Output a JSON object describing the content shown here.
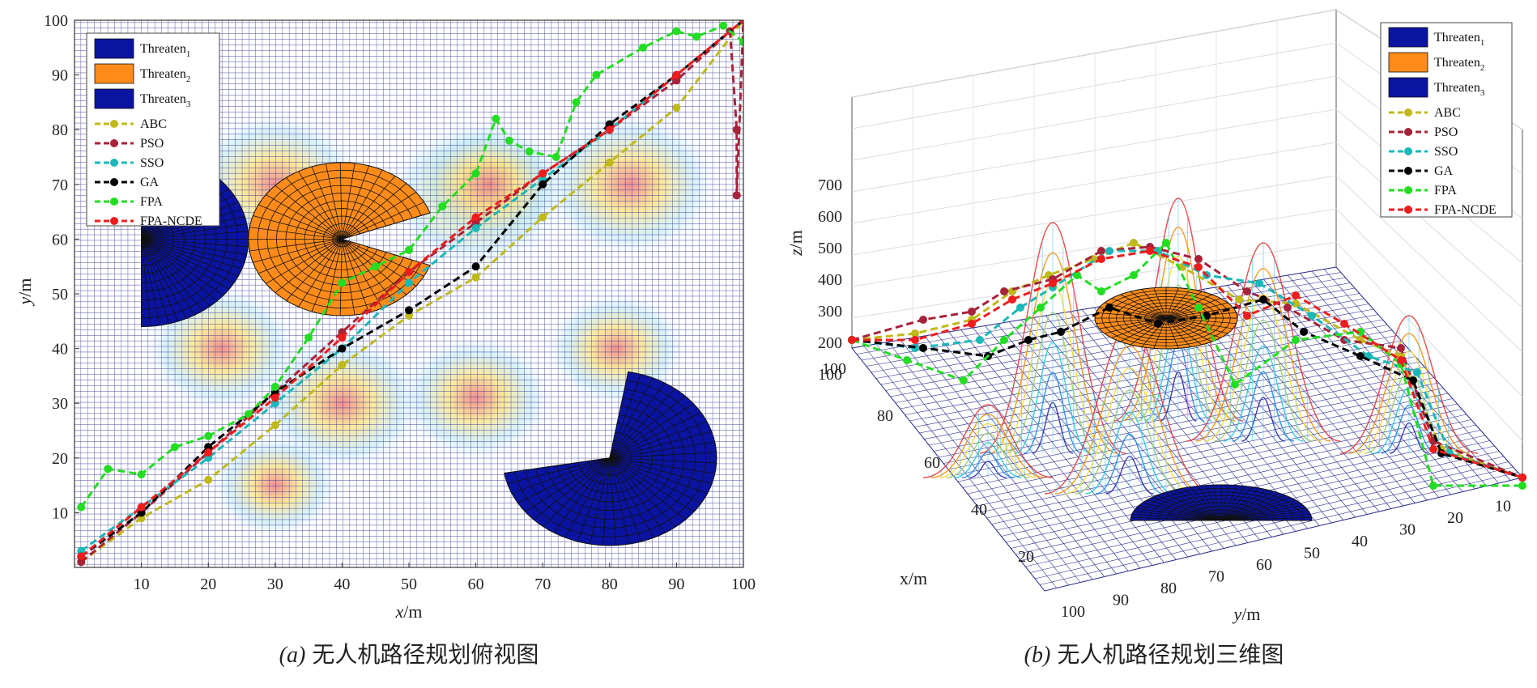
{
  "colors": {
    "grid_line": "#2a2a8f",
    "threat_blue": "#0a14a0",
    "threat_orange": "#ff8c1a",
    "abc": "#bfb91a",
    "pso": "#a6233a",
    "sso": "#1ab8b8",
    "ga": "#000000",
    "fpa": "#22dd22",
    "fpa_ncde": "#ee1c1c"
  },
  "legend_threats": [
    {
      "name": "Threaten",
      "sub": "1",
      "color": "#0a14a0"
    },
    {
      "name": "Threaten",
      "sub": "2",
      "color": "#ff8c1a"
    },
    {
      "name": "Threaten",
      "sub": "3",
      "color": "#0a14a0"
    }
  ],
  "chart_data": [
    {
      "type": "line",
      "panel": "a",
      "caption_tag": "(a)",
      "caption_text": "无人机路径规划俯视图",
      "xlabel_var": "x",
      "xlabel_unit": "/m",
      "ylabel_var": "y",
      "ylabel_unit": "/m",
      "xlim": [
        0,
        100
      ],
      "ylim": [
        0,
        100
      ],
      "xticks": [
        "10",
        "20",
        "30",
        "40",
        "50",
        "60",
        "70",
        "80",
        "90",
        "100"
      ],
      "yticks": [
        "10",
        "20",
        "30",
        "40",
        "50",
        "60",
        "70",
        "80",
        "90",
        "100"
      ],
      "threats": [
        {
          "name": "Threaten1",
          "center": [
            10,
            60
          ],
          "radius": 16,
          "color": "#0a14a0"
        },
        {
          "name": "Threaten2",
          "center": [
            40,
            60
          ],
          "radius": 14,
          "color": "#ff8c1a"
        },
        {
          "name": "Threaten3",
          "center": [
            80,
            20
          ],
          "radius": 16,
          "color": "#0a14a0"
        }
      ],
      "series": [
        {
          "name": "ABC",
          "color": "#bfb91a",
          "x": [
            1,
            10,
            20,
            30,
            40,
            50,
            60,
            70,
            80,
            90,
            100
          ],
          "y": [
            1,
            9,
            16,
            26,
            37,
            46,
            53,
            64,
            74,
            84,
            100
          ]
        },
        {
          "name": "PSO",
          "color": "#a6233a",
          "x": [
            1,
            10,
            20,
            30,
            40,
            50,
            60,
            70,
            80,
            90,
            98,
            99,
            99,
            100
          ],
          "y": [
            1,
            10,
            21,
            32,
            43,
            54,
            63,
            72,
            80,
            89,
            98,
            80,
            68,
            100
          ]
        },
        {
          "name": "SSO",
          "color": "#1ab8b8",
          "x": [
            1,
            10,
            20,
            30,
            40,
            50,
            60,
            70,
            80,
            90,
            100
          ],
          "y": [
            3,
            11,
            20,
            30,
            40,
            52,
            62,
            71,
            80,
            90,
            100
          ]
        },
        {
          "name": "GA",
          "color": "#000000",
          "x": [
            1,
            10,
            20,
            30,
            40,
            50,
            60,
            70,
            80,
            90,
            100
          ],
          "y": [
            2,
            10,
            22,
            32,
            40,
            47,
            55,
            70,
            81,
            90,
            100
          ]
        },
        {
          "name": "FPA",
          "color": "#22dd22",
          "x": [
            1,
            5,
            10,
            15,
            20,
            26,
            30,
            35,
            40,
            45,
            50,
            55,
            60,
            63,
            65,
            68,
            72,
            75,
            78,
            85,
            90,
            93,
            97,
            100
          ],
          "y": [
            11,
            18,
            17,
            22,
            24,
            28,
            33,
            42,
            52,
            55,
            58,
            66,
            72,
            82,
            78,
            76,
            75,
            85,
            90,
            95,
            98,
            97,
            99,
            96
          ]
        },
        {
          "name": "FPA-NCDE",
          "color": "#ee1c1c",
          "x": [
            1,
            10,
            20,
            30,
            40,
            50,
            60,
            70,
            80,
            90,
            100
          ],
          "y": [
            2,
            11,
            21,
            31,
            42,
            54,
            64,
            72,
            80,
            90,
            100
          ]
        }
      ]
    },
    {
      "type": "line",
      "panel": "b",
      "caption_tag": "(b)",
      "caption_text": "无人机路径规划三维图",
      "xlabel": "x/m",
      "ylabel_var": "y",
      "ylabel_unit": "/m",
      "zlabel_var": "z",
      "zlabel_unit": "/m",
      "zticks": [
        "100",
        "200",
        "300",
        "400",
        "500",
        "600",
        "700"
      ],
      "xticks": [
        "100",
        "80",
        "60",
        "40",
        "20"
      ],
      "yticks": [
        "100",
        "90",
        "80",
        "70",
        "60",
        "50",
        "40",
        "30",
        "20",
        "10"
      ],
      "series": [
        {
          "name": "ABC",
          "color": "#bfb91a"
        },
        {
          "name": "PSO",
          "color": "#a6233a"
        },
        {
          "name": "SSO",
          "color": "#1ab8b8"
        },
        {
          "name": "GA",
          "color": "#000000"
        },
        {
          "name": "FPA",
          "color": "#22dd22"
        },
        {
          "name": "FPA-NCDE",
          "color": "#ee1c1c"
        }
      ]
    }
  ]
}
